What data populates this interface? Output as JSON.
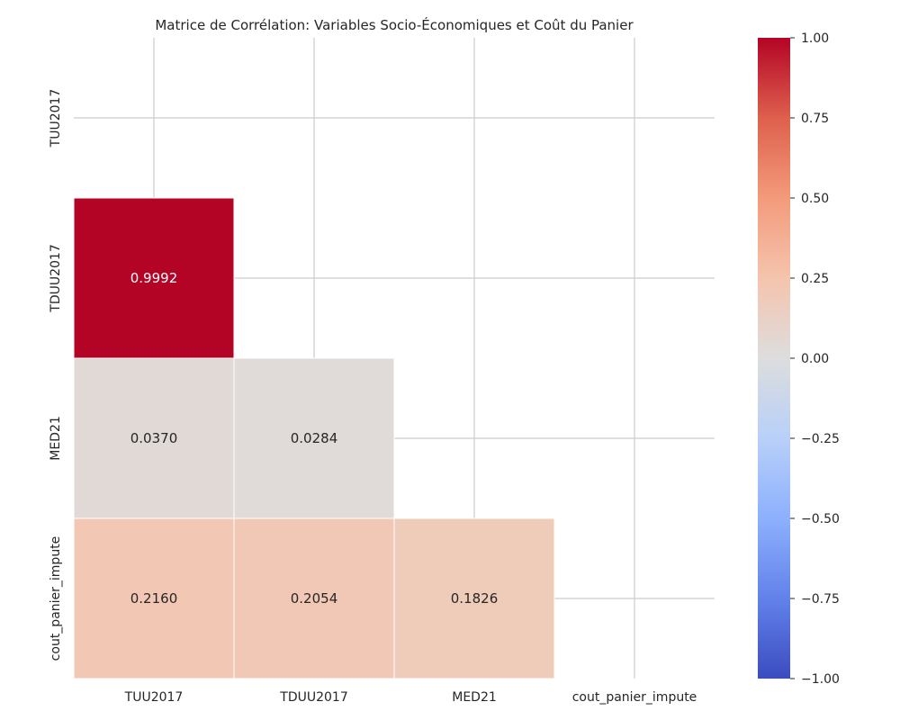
{
  "chart_data": {
    "type": "heatmap",
    "title": "Matrice de Corrélation: Variables Socio-Économiques et Coût du Panier",
    "x_labels": [
      "TUU2017",
      "TDUU2017",
      "MED21",
      "cout_panier_impute"
    ],
    "y_labels": [
      "TUU2017",
      "TDUU2017",
      "MED21",
      "cout_panier_impute"
    ],
    "mask": "upper-triangle-including-diagonal",
    "cells": [
      {
        "row": 1,
        "col": 0,
        "value": 0.9992,
        "label": "0.9992"
      },
      {
        "row": 2,
        "col": 0,
        "value": 0.037,
        "label": "0.0370"
      },
      {
        "row": 2,
        "col": 1,
        "value": 0.0284,
        "label": "0.0284"
      },
      {
        "row": 3,
        "col": 0,
        "value": 0.216,
        "label": "0.2160"
      },
      {
        "row": 3,
        "col": 1,
        "value": 0.2054,
        "label": "0.2054"
      },
      {
        "row": 3,
        "col": 2,
        "value": 0.1826,
        "label": "0.1826"
      }
    ],
    "colormap": "coolwarm",
    "vmin": -1.0,
    "vmax": 1.0,
    "colorbar_ticks": [
      "1.00",
      "0.75",
      "0.50",
      "0.25",
      "0.00",
      "−0.25",
      "−0.50",
      "−0.75",
      "−1.00"
    ],
    "colorbar_tick_values": [
      1.0,
      0.75,
      0.5,
      0.25,
      0.0,
      -0.25,
      -0.5,
      -0.75,
      -1.0
    ],
    "grid": true,
    "colors": {
      "grid": "#cccccc",
      "text_dark": "#262626",
      "text_light": "#ffffff"
    }
  }
}
